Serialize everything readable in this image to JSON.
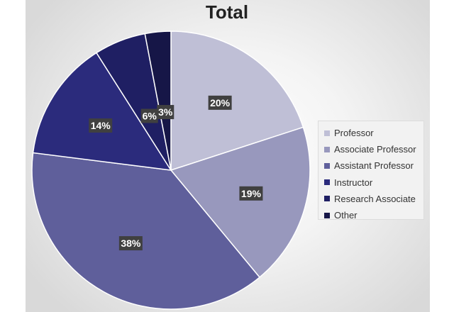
{
  "chart_data": {
    "type": "pie",
    "title": "Total",
    "slices": [
      {
        "label": "Professor",
        "value": 20,
        "display": "20%",
        "color": "#bfbfd6"
      },
      {
        "label": "Associate Professor",
        "value": 19,
        "display": "19%",
        "color": "#9898bd"
      },
      {
        "label": "Assistant Professor",
        "value": 38,
        "display": "38%",
        "color": "#5f5f9b"
      },
      {
        "label": "Instructor",
        "value": 14,
        "display": "14%",
        "color": "#2b2b7c"
      },
      {
        "label": "Research Associate",
        "value": 6,
        "display": "6%",
        "color": "#1f1f63"
      },
      {
        "label": "Other",
        "value": 3,
        "display": "3%",
        "color": "#161647"
      }
    ],
    "legend_position": "right",
    "label_background": "#404040"
  }
}
